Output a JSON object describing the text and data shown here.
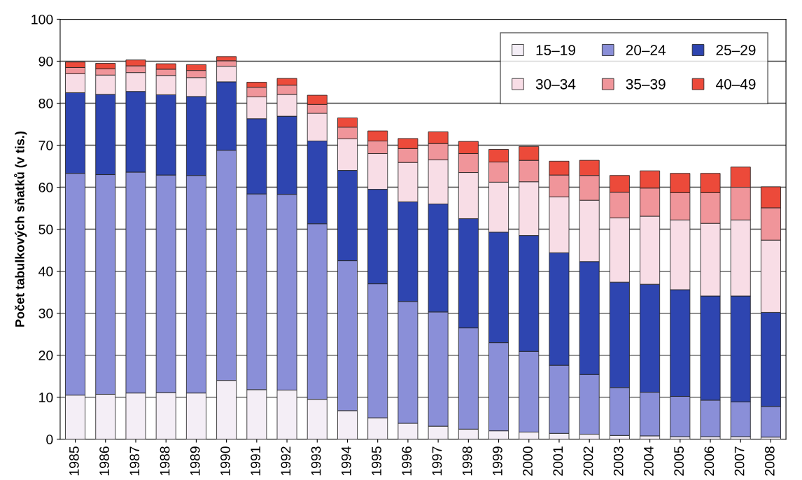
{
  "chart_data": {
    "type": "bar",
    "stacked": true,
    "ylabel": "Počet tabulkových sňatků (v tis.)",
    "categories": [
      "1985",
      "1986",
      "1987",
      "1988",
      "1989",
      "1990",
      "1991",
      "1992",
      "1993",
      "1994",
      "1995",
      "1996",
      "1997",
      "1998",
      "1999",
      "2000",
      "2001",
      "2002",
      "2003",
      "2004",
      "2005",
      "2006",
      "2007",
      "2008"
    ],
    "series": [
      {
        "name": "15–19",
        "color": "#f4eef6",
        "values": [
          10.5,
          10.7,
          11.0,
          11.1,
          11.0,
          14.0,
          11.8,
          11.7,
          9.5,
          6.8,
          5.1,
          3.8,
          3.1,
          2.4,
          2.0,
          1.7,
          1.4,
          1.2,
          0.9,
          0.8,
          0.6,
          0.6,
          0.6,
          0.5
        ]
      },
      {
        "name": "20–24",
        "color": "#8a8fd8",
        "values": [
          52.8,
          52.3,
          52.6,
          51.8,
          51.8,
          54.8,
          46.6,
          46.6,
          41.8,
          35.7,
          31.9,
          29.0,
          27.2,
          24.1,
          21.0,
          19.2,
          16.2,
          14.2,
          11.4,
          10.4,
          9.6,
          8.7,
          8.3,
          7.3
        ]
      },
      {
        "name": "25–29",
        "color": "#2e45b0",
        "values": [
          19.2,
          19.1,
          19.2,
          19.1,
          18.8,
          16.3,
          17.9,
          18.6,
          19.7,
          21.5,
          22.5,
          23.7,
          25.7,
          26.0,
          26.3,
          27.6,
          26.8,
          26.9,
          25.1,
          25.7,
          25.4,
          24.8,
          25.2,
          22.4
        ]
      },
      {
        "name": "30–34",
        "color": "#f8dde6",
        "values": [
          4.5,
          4.6,
          4.5,
          4.6,
          4.5,
          3.7,
          5.2,
          5.2,
          6.6,
          7.5,
          8.5,
          9.4,
          10.5,
          11.0,
          11.9,
          12.8,
          13.3,
          14.6,
          15.3,
          16.2,
          16.6,
          17.3,
          18.1,
          17.2
        ]
      },
      {
        "name": "35–39",
        "color": "#f0959a",
        "values": [
          1.5,
          1.5,
          1.6,
          1.5,
          1.7,
          1.3,
          2.3,
          2.2,
          2.1,
          2.8,
          3.0,
          3.3,
          3.9,
          4.5,
          4.8,
          5.1,
          5.2,
          5.9,
          6.1,
          6.7,
          6.5,
          7.3,
          7.8,
          7.7
        ]
      },
      {
        "name": "40–49",
        "color": "#ec4a3a",
        "values": [
          1.3,
          1.3,
          1.4,
          1.3,
          1.4,
          1.0,
          1.2,
          1.6,
          2.2,
          2.2,
          2.4,
          2.4,
          2.8,
          2.9,
          3.0,
          3.3,
          3.3,
          3.6,
          4.0,
          4.1,
          4.6,
          4.6,
          4.8,
          5.0
        ]
      }
    ],
    "ylim": [
      0,
      100
    ],
    "yticks": [
      0,
      10,
      20,
      30,
      40,
      50,
      60,
      70,
      80,
      90,
      100
    ],
    "grid": "y",
    "legend": "top right"
  }
}
